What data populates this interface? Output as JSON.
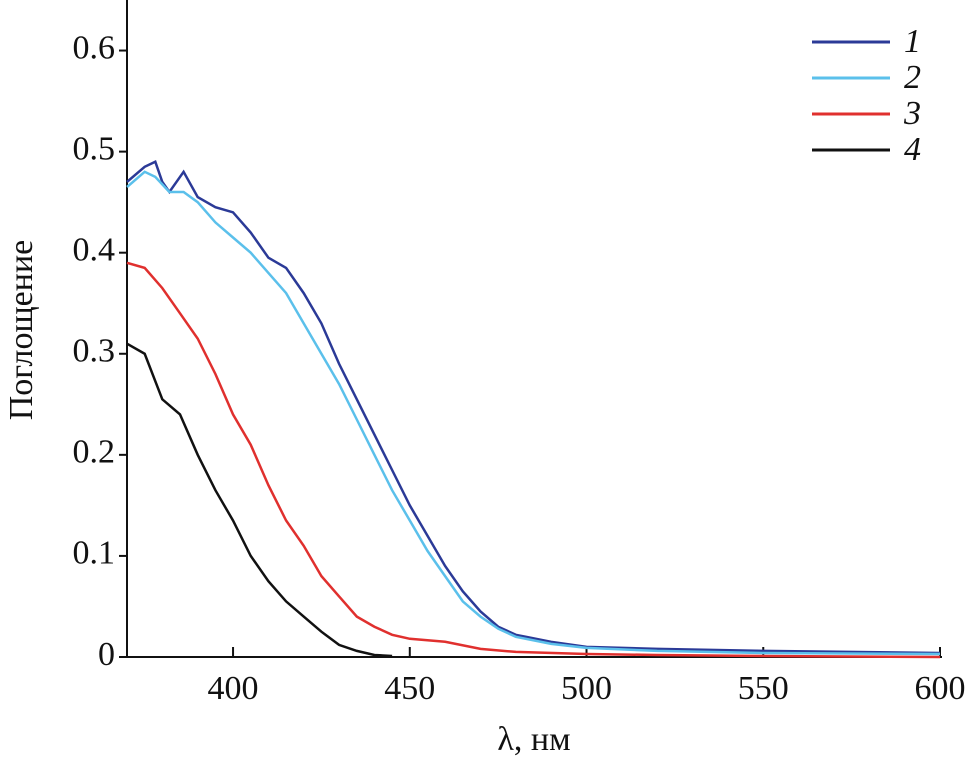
{
  "chart_data": {
    "type": "line",
    "xlabel": "λ, нм",
    "ylabel": "Поглощение",
    "xlim": [
      370,
      600
    ],
    "ylim": [
      0,
      0.65
    ],
    "xticks": [
      400,
      450,
      500,
      550,
      600
    ],
    "yticks": [
      0,
      0.1,
      0.2,
      0.3,
      0.4,
      0.5,
      0.6
    ],
    "legend": "upper right",
    "series": [
      {
        "name": "1",
        "color": "#2b3a97",
        "x": [
          370,
          375,
          378,
          380,
          382,
          386,
          390,
          395,
          400,
          405,
          410,
          415,
          420,
          425,
          430,
          435,
          440,
          445,
          450,
          455,
          460,
          465,
          470,
          475,
          480,
          490,
          500,
          520,
          550,
          600
        ],
        "values": [
          0.47,
          0.485,
          0.49,
          0.47,
          0.46,
          0.48,
          0.455,
          0.445,
          0.44,
          0.42,
          0.395,
          0.385,
          0.36,
          0.33,
          0.29,
          0.255,
          0.22,
          0.185,
          0.15,
          0.12,
          0.09,
          0.065,
          0.045,
          0.03,
          0.022,
          0.015,
          0.01,
          0.008,
          0.006,
          0.004
        ]
      },
      {
        "name": "2",
        "color": "#5bc0eb",
        "x": [
          370,
          375,
          378,
          382,
          386,
          390,
          395,
          400,
          405,
          410,
          415,
          420,
          425,
          430,
          435,
          440,
          445,
          450,
          455,
          460,
          465,
          470,
          475,
          480,
          490,
          500,
          520,
          550,
          600
        ],
        "values": [
          0.465,
          0.48,
          0.475,
          0.46,
          0.46,
          0.45,
          0.43,
          0.415,
          0.4,
          0.38,
          0.36,
          0.33,
          0.3,
          0.27,
          0.235,
          0.2,
          0.165,
          0.135,
          0.105,
          0.08,
          0.055,
          0.04,
          0.028,
          0.02,
          0.013,
          0.009,
          0.006,
          0.004,
          0.003
        ]
      },
      {
        "name": "3",
        "color": "#e0302e",
        "x": [
          370,
          375,
          380,
          385,
          390,
          395,
          400,
          405,
          410,
          415,
          420,
          425,
          430,
          435,
          440,
          445,
          450,
          460,
          470,
          480,
          500,
          520,
          550,
          600
        ],
        "values": [
          0.39,
          0.385,
          0.365,
          0.34,
          0.315,
          0.28,
          0.24,
          0.21,
          0.17,
          0.135,
          0.11,
          0.08,
          0.06,
          0.04,
          0.03,
          0.022,
          0.018,
          0.015,
          0.008,
          0.005,
          0.003,
          0.002,
          0.001,
          0
        ]
      },
      {
        "name": "4",
        "color": "#111111",
        "x": [
          370,
          375,
          380,
          385,
          390,
          395,
          400,
          405,
          410,
          415,
          420,
          425,
          430,
          435,
          440,
          445
        ],
        "values": [
          0.31,
          0.3,
          0.255,
          0.24,
          0.2,
          0.165,
          0.135,
          0.1,
          0.075,
          0.055,
          0.04,
          0.025,
          0.012,
          0.006,
          0.002,
          0.001
        ]
      }
    ]
  }
}
